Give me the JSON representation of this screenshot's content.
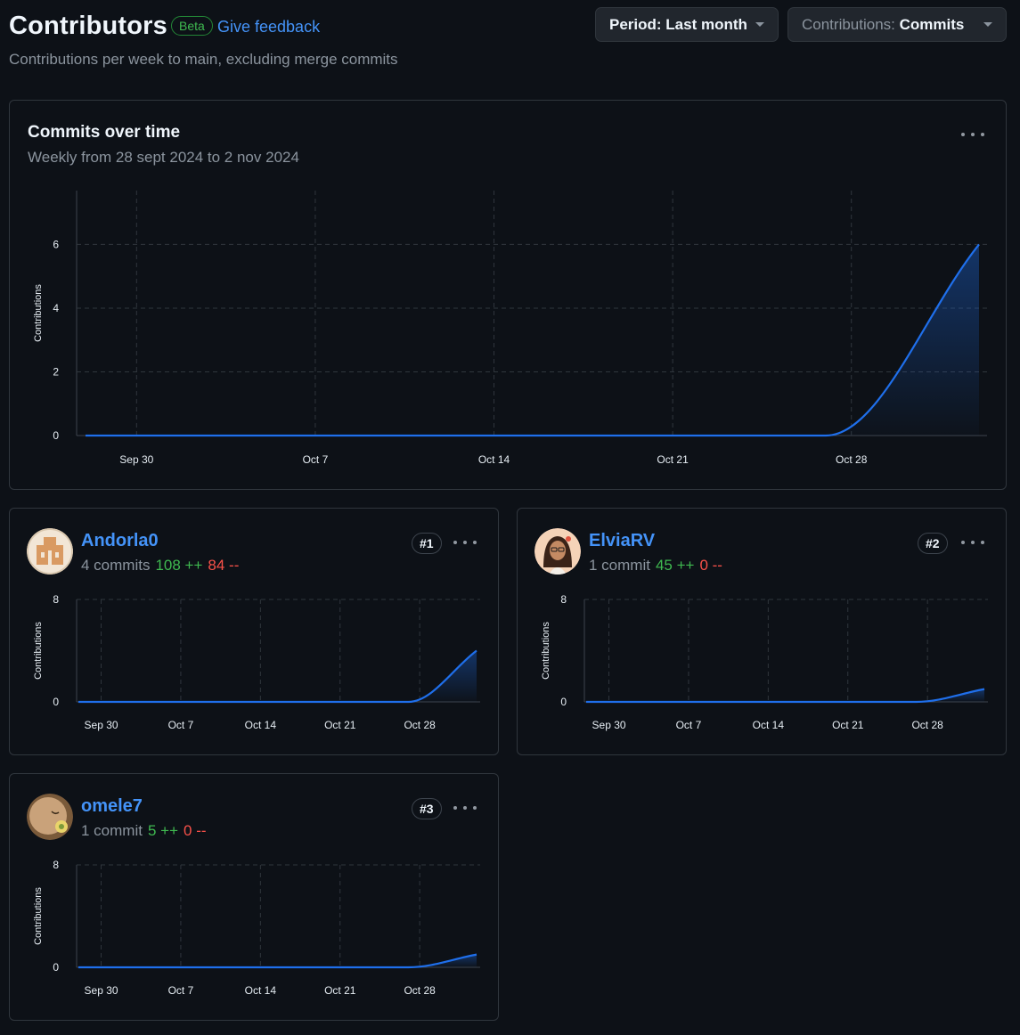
{
  "header": {
    "title": "Contributors",
    "badge": "Beta",
    "feedback_link": "Give feedback",
    "subtitle": "Contributions per week to main, excluding merge commits",
    "period_key": "Period:",
    "period_value": "Last month",
    "contrib_key": "Contributions:",
    "contrib_value": "Commits"
  },
  "main_card": {
    "title": "Commits over time",
    "subtitle": "Weekly from 28 sept 2024 to 2 nov 2024",
    "menu_icon": "kebab-horizontal-icon"
  },
  "contributors": [
    {
      "rank": "#1",
      "name": "Andorla0",
      "commits": "4 commits",
      "additions": "108 ++",
      "deletions": "84 --",
      "avatar_icon": "avatar-andorla0"
    },
    {
      "rank": "#2",
      "name": "ElviaRV",
      "commits": "1 commit",
      "additions": "45 ++",
      "deletions": "0 --",
      "avatar_icon": "avatar-elviarv"
    },
    {
      "rank": "#3",
      "name": "omele7",
      "commits": "1 commit",
      "additions": "5 ++",
      "deletions": "0 --",
      "avatar_icon": "avatar-omele7"
    }
  ],
  "colors": {
    "accent": "#4493f8",
    "line": "#1f6feb",
    "additions": "#3fb950",
    "deletions": "#f85149",
    "background": "#0d1117",
    "border": "#30363d"
  },
  "chart_data": [
    {
      "type": "area",
      "title": "Commits over time",
      "subtitle": "Weekly from 28 sept 2024 to 2 nov 2024",
      "ylabel": "Contributions",
      "xlabel": "",
      "x_ticks": [
        "Sep 30",
        "Oct 7",
        "Oct 14",
        "Oct 21",
        "Oct 28"
      ],
      "x": [
        "2024-09-28",
        "2024-10-27",
        "2024-11-02"
      ],
      "y_ticks": [
        "0",
        "2",
        "4",
        "6"
      ],
      "ylim": [
        0,
        7.2
      ],
      "values": [
        0,
        0,
        6
      ],
      "grid": true
    },
    {
      "type": "area",
      "series_owner": "Andorla0",
      "ylabel": "Contributions",
      "x_ticks": [
        "Sep 30",
        "Oct 7",
        "Oct 14",
        "Oct 21",
        "Oct 28"
      ],
      "x": [
        "2024-09-28",
        "2024-10-27",
        "2024-11-02"
      ],
      "y_ticks": [
        "0",
        "8"
      ],
      "ylim": [
        0,
        8
      ],
      "values": [
        0,
        0,
        4
      ],
      "grid": true
    },
    {
      "type": "area",
      "series_owner": "ElviaRV",
      "ylabel": "Contributions",
      "x_ticks": [
        "Sep 30",
        "Oct 7",
        "Oct 14",
        "Oct 21",
        "Oct 28"
      ],
      "x": [
        "2024-09-28",
        "2024-10-27",
        "2024-11-02"
      ],
      "y_ticks": [
        "0",
        "8"
      ],
      "ylim": [
        0,
        8
      ],
      "values": [
        0,
        0,
        1
      ],
      "grid": true
    },
    {
      "type": "area",
      "series_owner": "omele7",
      "ylabel": "Contributions",
      "x_ticks": [
        "Sep 30",
        "Oct 7",
        "Oct 14",
        "Oct 21",
        "Oct 28"
      ],
      "x": [
        "2024-09-28",
        "2024-10-27",
        "2024-11-02"
      ],
      "y_ticks": [
        "0",
        "8"
      ],
      "ylim": [
        0,
        8
      ],
      "values": [
        0,
        0,
        1
      ],
      "grid": true
    }
  ]
}
